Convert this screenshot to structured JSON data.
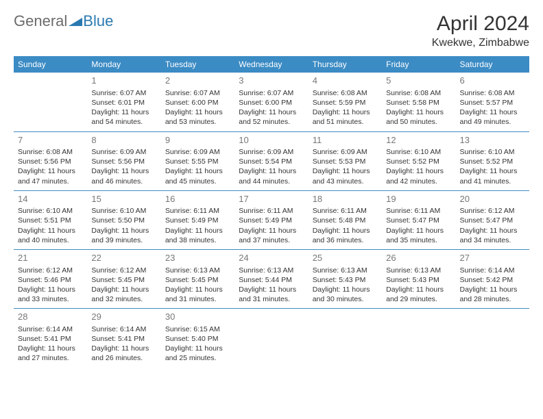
{
  "logo": {
    "text1": "General",
    "text2": "Blue"
  },
  "title": "April 2024",
  "location": "Kwekwe, Zimbabwe",
  "weekdays": [
    "Sunday",
    "Monday",
    "Tuesday",
    "Wednesday",
    "Thursday",
    "Friday",
    "Saturday"
  ],
  "header_bg": "#3b8bc4",
  "header_fg": "#ffffff",
  "border_color": "#3b8bc4",
  "daynum_color": "#777777",
  "text_color": "#333333",
  "weeks": [
    [
      null,
      {
        "d": "1",
        "sr": "6:07 AM",
        "ss": "6:01 PM",
        "dl": "11 hours and 54 minutes."
      },
      {
        "d": "2",
        "sr": "6:07 AM",
        "ss": "6:00 PM",
        "dl": "11 hours and 53 minutes."
      },
      {
        "d": "3",
        "sr": "6:07 AM",
        "ss": "6:00 PM",
        "dl": "11 hours and 52 minutes."
      },
      {
        "d": "4",
        "sr": "6:08 AM",
        "ss": "5:59 PM",
        "dl": "11 hours and 51 minutes."
      },
      {
        "d": "5",
        "sr": "6:08 AM",
        "ss": "5:58 PM",
        "dl": "11 hours and 50 minutes."
      },
      {
        "d": "6",
        "sr": "6:08 AM",
        "ss": "5:57 PM",
        "dl": "11 hours and 49 minutes."
      }
    ],
    [
      {
        "d": "7",
        "sr": "6:08 AM",
        "ss": "5:56 PM",
        "dl": "11 hours and 47 minutes."
      },
      {
        "d": "8",
        "sr": "6:09 AM",
        "ss": "5:56 PM",
        "dl": "11 hours and 46 minutes."
      },
      {
        "d": "9",
        "sr": "6:09 AM",
        "ss": "5:55 PM",
        "dl": "11 hours and 45 minutes."
      },
      {
        "d": "10",
        "sr": "6:09 AM",
        "ss": "5:54 PM",
        "dl": "11 hours and 44 minutes."
      },
      {
        "d": "11",
        "sr": "6:09 AM",
        "ss": "5:53 PM",
        "dl": "11 hours and 43 minutes."
      },
      {
        "d": "12",
        "sr": "6:10 AM",
        "ss": "5:52 PM",
        "dl": "11 hours and 42 minutes."
      },
      {
        "d": "13",
        "sr": "6:10 AM",
        "ss": "5:52 PM",
        "dl": "11 hours and 41 minutes."
      }
    ],
    [
      {
        "d": "14",
        "sr": "6:10 AM",
        "ss": "5:51 PM",
        "dl": "11 hours and 40 minutes."
      },
      {
        "d": "15",
        "sr": "6:10 AM",
        "ss": "5:50 PM",
        "dl": "11 hours and 39 minutes."
      },
      {
        "d": "16",
        "sr": "6:11 AM",
        "ss": "5:49 PM",
        "dl": "11 hours and 38 minutes."
      },
      {
        "d": "17",
        "sr": "6:11 AM",
        "ss": "5:49 PM",
        "dl": "11 hours and 37 minutes."
      },
      {
        "d": "18",
        "sr": "6:11 AM",
        "ss": "5:48 PM",
        "dl": "11 hours and 36 minutes."
      },
      {
        "d": "19",
        "sr": "6:11 AM",
        "ss": "5:47 PM",
        "dl": "11 hours and 35 minutes."
      },
      {
        "d": "20",
        "sr": "6:12 AM",
        "ss": "5:47 PM",
        "dl": "11 hours and 34 minutes."
      }
    ],
    [
      {
        "d": "21",
        "sr": "6:12 AM",
        "ss": "5:46 PM",
        "dl": "11 hours and 33 minutes."
      },
      {
        "d": "22",
        "sr": "6:12 AM",
        "ss": "5:45 PM",
        "dl": "11 hours and 32 minutes."
      },
      {
        "d": "23",
        "sr": "6:13 AM",
        "ss": "5:45 PM",
        "dl": "11 hours and 31 minutes."
      },
      {
        "d": "24",
        "sr": "6:13 AM",
        "ss": "5:44 PM",
        "dl": "11 hours and 31 minutes."
      },
      {
        "d": "25",
        "sr": "6:13 AM",
        "ss": "5:43 PM",
        "dl": "11 hours and 30 minutes."
      },
      {
        "d": "26",
        "sr": "6:13 AM",
        "ss": "5:43 PM",
        "dl": "11 hours and 29 minutes."
      },
      {
        "d": "27",
        "sr": "6:14 AM",
        "ss": "5:42 PM",
        "dl": "11 hours and 28 minutes."
      }
    ],
    [
      {
        "d": "28",
        "sr": "6:14 AM",
        "ss": "5:41 PM",
        "dl": "11 hours and 27 minutes."
      },
      {
        "d": "29",
        "sr": "6:14 AM",
        "ss": "5:41 PM",
        "dl": "11 hours and 26 minutes."
      },
      {
        "d": "30",
        "sr": "6:15 AM",
        "ss": "5:40 PM",
        "dl": "11 hours and 25 minutes."
      },
      null,
      null,
      null,
      null
    ]
  ],
  "labels": {
    "sunrise": "Sunrise:",
    "sunset": "Sunset:",
    "daylight": "Daylight:"
  }
}
